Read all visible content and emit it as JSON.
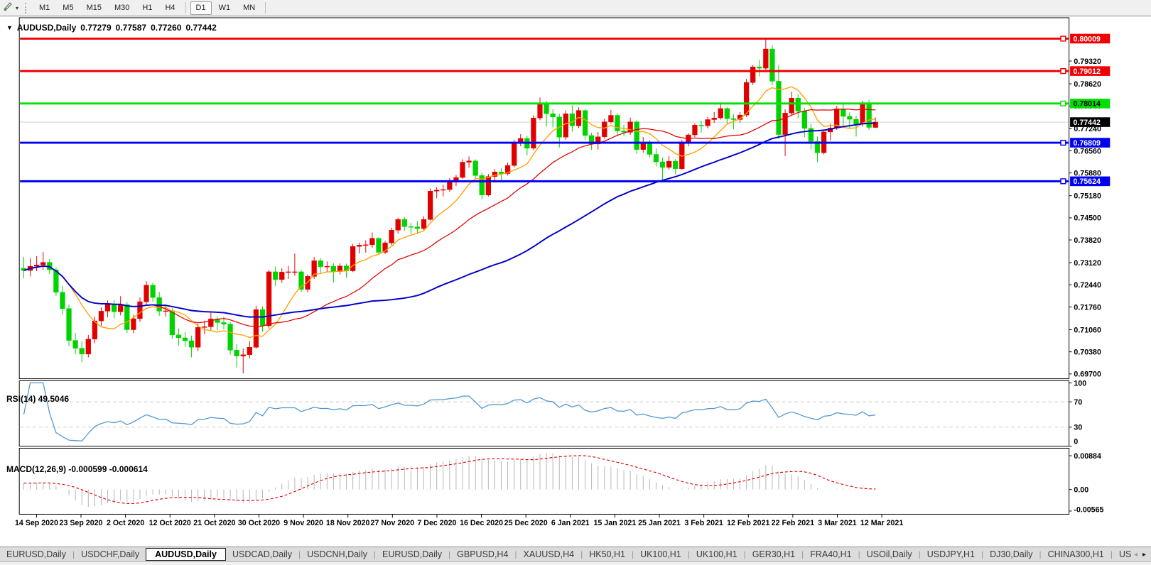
{
  "toolbar": {
    "tool_icon": "chart-cursor-icon",
    "dropdown_glyph": "▾",
    "timeframes": [
      "M1",
      "M5",
      "M15",
      "M30",
      "H1",
      "H4",
      "D1",
      "W1",
      "MN"
    ],
    "active_timeframe": "D1"
  },
  "chart_window": {
    "title": {
      "dropdown_glyph": "▼",
      "symbol": "AUDUSD,Daily",
      "open": "0.77279",
      "high": "0.77587",
      "low": "0.77260",
      "close": "0.77442"
    },
    "price_axis": {
      "plain_ticks": [
        "0.79320",
        "0.78620",
        "0.77940",
        "0.77240",
        "0.76560",
        "0.75880",
        "0.75180",
        "0.74500",
        "0.73820",
        "0.73120",
        "0.72440",
        "0.71760",
        "0.71060",
        "0.70380",
        "0.69700"
      ]
    },
    "rsi_panel": {
      "label": "RSI(14) 49.5046",
      "line_color": "#4e96d1",
      "level_line_color": "#c8c8c8",
      "levels": [
        70,
        30
      ],
      "scale": [
        {
          "label": "100",
          "value": 100
        },
        {
          "label": "70",
          "value": 70
        },
        {
          "label": "30",
          "value": 30
        },
        {
          "label": "0",
          "value": 0
        }
      ]
    },
    "macd_panel": {
      "label": "MACD(12,26,9) -0.000599 -0.000614",
      "bar_color": "#b4b4b4",
      "signal_color": "#e00000",
      "scale": [
        {
          "label": "0.00884",
          "value": 0.00884
        },
        {
          "label": "0.00",
          "value": 0
        },
        {
          "label": "-0.00565",
          "value": -0.00565
        }
      ]
    }
  },
  "chart_data": {
    "type": "candlestick",
    "symbol": "AUDUSD",
    "timeframe": "Daily",
    "last_ohlc": {
      "open": 0.77279,
      "high": 0.77587,
      "low": 0.7726,
      "close": 0.77442
    },
    "up_color": "#e00000",
    "down_color": "#00d300",
    "ylim": [
      0.6955,
      0.8055
    ],
    "x_labels": [
      "14 Sep 2020",
      "23 Sep 2020",
      "2 Oct 2020",
      "12 Oct 2020",
      "21 Oct 2020",
      "30 Oct 2020",
      "9 Nov 2020",
      "18 Nov 2020",
      "27 Nov 2020",
      "7 Dec 2020",
      "16 Dec 2020",
      "25 Dec 2020",
      "6 Jan 2021",
      "15 Jan 2021",
      "25 Jan 2021",
      "3 Feb 2021",
      "12 Feb 2021",
      "22 Feb 2021",
      "3 Mar 2021",
      "12 Mar 2021"
    ],
    "horizontal_levels": [
      {
        "price": 0.80009,
        "color": "#f00000",
        "tag_bg": "#f00000",
        "tag_fg": "#ffffff"
      },
      {
        "price": 0.79012,
        "color": "#f00000",
        "tag_bg": "#f00000",
        "tag_fg": "#ffffff"
      },
      {
        "price": 0.78014,
        "color": "#00e000",
        "tag_bg": "#00e000",
        "tag_fg": "#000000"
      },
      {
        "price": 0.76809,
        "color": "#0000f0",
        "tag_bg": "#0000f0",
        "tag_fg": "#ffffff"
      },
      {
        "price": 0.75624,
        "color": "#0000f0",
        "tag_bg": "#0000f0",
        "tag_fg": "#ffffff"
      }
    ],
    "current_price": {
      "value": 0.77442,
      "label": "0.77442",
      "line_color": "#c8c8c8",
      "tag_bg": "#000000",
      "tag_fg": "#ffffff"
    },
    "moving_averages": [
      {
        "name": "fast-ma",
        "period": 8,
        "color": "#ffa000",
        "width": 1.4
      },
      {
        "name": "mid-ma",
        "period": 21,
        "color": "#e00000",
        "width": 1.3
      },
      {
        "name": "slow-ma",
        "period": 55,
        "color": "#0000c8",
        "width": 2
      }
    ],
    "indicators": [
      {
        "name": "RSI",
        "params": [
          14
        ],
        "last_value": 49.5046
      },
      {
        "name": "MACD",
        "params": [
          12,
          26,
          9
        ],
        "last_values": [
          -0.000599,
          -0.000614
        ]
      }
    ],
    "candles": [
      [
        0.7295,
        0.733,
        0.7264,
        0.7288
      ],
      [
        0.7288,
        0.7326,
        0.727,
        0.7301
      ],
      [
        0.7301,
        0.7332,
        0.7286,
        0.7305
      ],
      [
        0.7305,
        0.7345,
        0.729,
        0.7313
      ],
      [
        0.7313,
        0.7324,
        0.7277,
        0.729
      ],
      [
        0.729,
        0.7298,
        0.721,
        0.7221
      ],
      [
        0.7221,
        0.724,
        0.7152,
        0.7171
      ],
      [
        0.7171,
        0.7183,
        0.7055,
        0.7073
      ],
      [
        0.7073,
        0.7096,
        0.703,
        0.7049
      ],
      [
        0.7049,
        0.707,
        0.7006,
        0.7031
      ],
      [
        0.7031,
        0.709,
        0.7021,
        0.7077
      ],
      [
        0.7077,
        0.7146,
        0.7064,
        0.7133
      ],
      [
        0.7133,
        0.7175,
        0.7118,
        0.7163
      ],
      [
        0.7163,
        0.7196,
        0.7144,
        0.7185
      ],
      [
        0.7185,
        0.7196,
        0.7141,
        0.7161
      ],
      [
        0.7161,
        0.7209,
        0.715,
        0.7183
      ],
      [
        0.7183,
        0.719,
        0.7096,
        0.7106
      ],
      [
        0.7106,
        0.7152,
        0.7095,
        0.714
      ],
      [
        0.714,
        0.7205,
        0.713,
        0.7192
      ],
      [
        0.7192,
        0.7255,
        0.7183,
        0.7243
      ],
      [
        0.7243,
        0.725,
        0.7192,
        0.7205
      ],
      [
        0.7205,
        0.7222,
        0.7149,
        0.7163
      ],
      [
        0.7163,
        0.7184,
        0.7146,
        0.7164
      ],
      [
        0.7164,
        0.7172,
        0.7078,
        0.709
      ],
      [
        0.709,
        0.711,
        0.7057,
        0.7081
      ],
      [
        0.7081,
        0.7098,
        0.7053,
        0.7072
      ],
      [
        0.7072,
        0.7088,
        0.7021,
        0.7052
      ],
      [
        0.7052,
        0.7125,
        0.704,
        0.7113
      ],
      [
        0.7113,
        0.7134,
        0.7092,
        0.7115
      ],
      [
        0.7115,
        0.7159,
        0.7105,
        0.7139
      ],
      [
        0.7139,
        0.7146,
        0.7104,
        0.7128
      ],
      [
        0.7128,
        0.7145,
        0.7107,
        0.7123
      ],
      [
        0.7123,
        0.713,
        0.7029,
        0.7043
      ],
      [
        0.7043,
        0.7062,
        0.699,
        0.7025
      ],
      [
        0.7025,
        0.7048,
        0.6972,
        0.7029
      ],
      [
        0.7029,
        0.7071,
        0.7018,
        0.7052
      ],
      [
        0.7052,
        0.718,
        0.7048,
        0.7168
      ],
      [
        0.7168,
        0.7178,
        0.71,
        0.7118
      ],
      [
        0.7118,
        0.729,
        0.711,
        0.7284
      ],
      [
        0.7284,
        0.73,
        0.724,
        0.726
      ],
      [
        0.726,
        0.7295,
        0.725,
        0.7283
      ],
      [
        0.7283,
        0.7302,
        0.7262,
        0.7284
      ],
      [
        0.7284,
        0.734,
        0.7272,
        0.7284
      ],
      [
        0.7284,
        0.729,
        0.7222,
        0.723
      ],
      [
        0.723,
        0.7276,
        0.7221,
        0.727
      ],
      [
        0.727,
        0.733,
        0.7262,
        0.7318
      ],
      [
        0.7318,
        0.7326,
        0.728,
        0.73
      ],
      [
        0.73,
        0.7316,
        0.7285,
        0.7301
      ],
      [
        0.7301,
        0.731,
        0.7251,
        0.7285
      ],
      [
        0.7285,
        0.731,
        0.7276,
        0.7302
      ],
      [
        0.7302,
        0.7309,
        0.7265,
        0.7287
      ],
      [
        0.7287,
        0.737,
        0.7283,
        0.7362
      ],
      [
        0.7362,
        0.7374,
        0.734,
        0.7366
      ],
      [
        0.7366,
        0.7381,
        0.7343,
        0.7367
      ],
      [
        0.7367,
        0.7405,
        0.7358,
        0.7387
      ],
      [
        0.7387,
        0.739,
        0.7338,
        0.7344
      ],
      [
        0.7344,
        0.7379,
        0.7338,
        0.7373
      ],
      [
        0.7373,
        0.742,
        0.7366,
        0.7412
      ],
      [
        0.7412,
        0.745,
        0.7402,
        0.7445
      ],
      [
        0.7445,
        0.7453,
        0.741,
        0.7423
      ],
      [
        0.7423,
        0.7434,
        0.7401,
        0.7422
      ],
      [
        0.7422,
        0.744,
        0.7401,
        0.7417
      ],
      [
        0.7417,
        0.7455,
        0.741,
        0.7445
      ],
      [
        0.7445,
        0.754,
        0.7441,
        0.7532
      ],
      [
        0.7532,
        0.7544,
        0.751,
        0.7535
      ],
      [
        0.7535,
        0.7552,
        0.7516,
        0.7537
      ],
      [
        0.7537,
        0.7572,
        0.753,
        0.756
      ],
      [
        0.756,
        0.7582,
        0.7548,
        0.7574
      ],
      [
        0.7574,
        0.763,
        0.757,
        0.7621
      ],
      [
        0.7621,
        0.7639,
        0.7604,
        0.7625
      ],
      [
        0.7625,
        0.763,
        0.757,
        0.758
      ],
      [
        0.758,
        0.7588,
        0.7507,
        0.752
      ],
      [
        0.752,
        0.7585,
        0.7516,
        0.7577
      ],
      [
        0.7577,
        0.76,
        0.7565,
        0.7591
      ],
      [
        0.7591,
        0.7602,
        0.756,
        0.7586
      ],
      [
        0.7586,
        0.762,
        0.758,
        0.7611
      ],
      [
        0.7611,
        0.769,
        0.7605,
        0.7682
      ],
      [
        0.7682,
        0.7707,
        0.767,
        0.7694
      ],
      [
        0.7694,
        0.7702,
        0.7642,
        0.7664
      ],
      [
        0.7664,
        0.7765,
        0.7658,
        0.7757
      ],
      [
        0.7757,
        0.782,
        0.775,
        0.7803
      ],
      [
        0.7803,
        0.781,
        0.773,
        0.777
      ],
      [
        0.777,
        0.7784,
        0.7728,
        0.776
      ],
      [
        0.776,
        0.777,
        0.7666,
        0.7698
      ],
      [
        0.7698,
        0.778,
        0.769,
        0.777
      ],
      [
        0.777,
        0.7796,
        0.7715,
        0.7733
      ],
      [
        0.7733,
        0.779,
        0.7726,
        0.778
      ],
      [
        0.778,
        0.7785,
        0.769,
        0.7703
      ],
      [
        0.7703,
        0.7712,
        0.7659,
        0.7677
      ],
      [
        0.7677,
        0.7714,
        0.766,
        0.7699
      ],
      [
        0.7699,
        0.7755,
        0.7693,
        0.7745
      ],
      [
        0.7745,
        0.7782,
        0.774,
        0.7765
      ],
      [
        0.7765,
        0.777,
        0.77,
        0.7717
      ],
      [
        0.7717,
        0.7736,
        0.7702,
        0.7713
      ],
      [
        0.7713,
        0.7758,
        0.7705,
        0.7745
      ],
      [
        0.7745,
        0.775,
        0.7647,
        0.766
      ],
      [
        0.766,
        0.7698,
        0.765,
        0.7679
      ],
      [
        0.7679,
        0.769,
        0.7635,
        0.7645
      ],
      [
        0.7645,
        0.7663,
        0.7608,
        0.7622
      ],
      [
        0.7622,
        0.7636,
        0.7564,
        0.7605
      ],
      [
        0.7605,
        0.764,
        0.7598,
        0.7624
      ],
      [
        0.7624,
        0.763,
        0.7583,
        0.7601
      ],
      [
        0.7601,
        0.769,
        0.7598,
        0.7679
      ],
      [
        0.7679,
        0.771,
        0.767,
        0.7705
      ],
      [
        0.7705,
        0.774,
        0.7698,
        0.7735
      ],
      [
        0.7735,
        0.7748,
        0.7712,
        0.7733
      ],
      [
        0.7733,
        0.776,
        0.7725,
        0.7752
      ],
      [
        0.7752,
        0.7775,
        0.7742,
        0.7757
      ],
      [
        0.7757,
        0.7805,
        0.7752,
        0.7786
      ],
      [
        0.7786,
        0.779,
        0.774,
        0.7755
      ],
      [
        0.7755,
        0.7769,
        0.7722,
        0.7752
      ],
      [
        0.7752,
        0.7775,
        0.7743,
        0.7766
      ],
      [
        0.7766,
        0.7877,
        0.776,
        0.7866
      ],
      [
        0.7866,
        0.792,
        0.7858,
        0.7914
      ],
      [
        0.7914,
        0.7935,
        0.7885,
        0.791
      ],
      [
        0.791,
        0.8001,
        0.7905,
        0.7969
      ],
      [
        0.7969,
        0.798,
        0.7858,
        0.787
      ],
      [
        0.787,
        0.792,
        0.7692,
        0.7706
      ],
      [
        0.7706,
        0.7784,
        0.764,
        0.7772
      ],
      [
        0.7772,
        0.7838,
        0.7765,
        0.7818
      ],
      [
        0.7818,
        0.783,
        0.7756,
        0.7778
      ],
      [
        0.7778,
        0.7788,
        0.7698,
        0.7725
      ],
      [
        0.7725,
        0.7739,
        0.766,
        0.7685
      ],
      [
        0.7685,
        0.77,
        0.7621,
        0.765
      ],
      [
        0.765,
        0.772,
        0.7645,
        0.7714
      ],
      [
        0.7714,
        0.774,
        0.7688,
        0.7726
      ],
      [
        0.7726,
        0.7794,
        0.772,
        0.7785
      ],
      [
        0.7785,
        0.78,
        0.773,
        0.7762
      ],
      [
        0.7762,
        0.7774,
        0.7724,
        0.7753
      ],
      [
        0.7753,
        0.7764,
        0.77,
        0.7738
      ],
      [
        0.7738,
        0.781,
        0.773,
        0.78
      ],
      [
        0.78,
        0.7812,
        0.772,
        0.7728
      ],
      [
        0.77279,
        0.77587,
        0.7726,
        0.77442
      ]
    ]
  },
  "tabs": {
    "items": [
      "EURUSD,Daily",
      "USDCHF,Daily",
      "AUDUSD,Daily",
      "USDCAD,Daily",
      "USDCNH,Daily",
      "EURUSD,Daily",
      "GBPUSD,H4",
      "XAUUSD,H4",
      "HK50,H1",
      "UK100,H1",
      "UK100,H1",
      "GER30,H1",
      "FRA40,H1",
      "USOil,Daily",
      "USDJPY,H1",
      "DJ30,Daily",
      "CHINA300,H1",
      "USOil,"
    ],
    "active_index": 2,
    "scroll_left_icon": "◂",
    "scroll_right_icon": "▸"
  }
}
